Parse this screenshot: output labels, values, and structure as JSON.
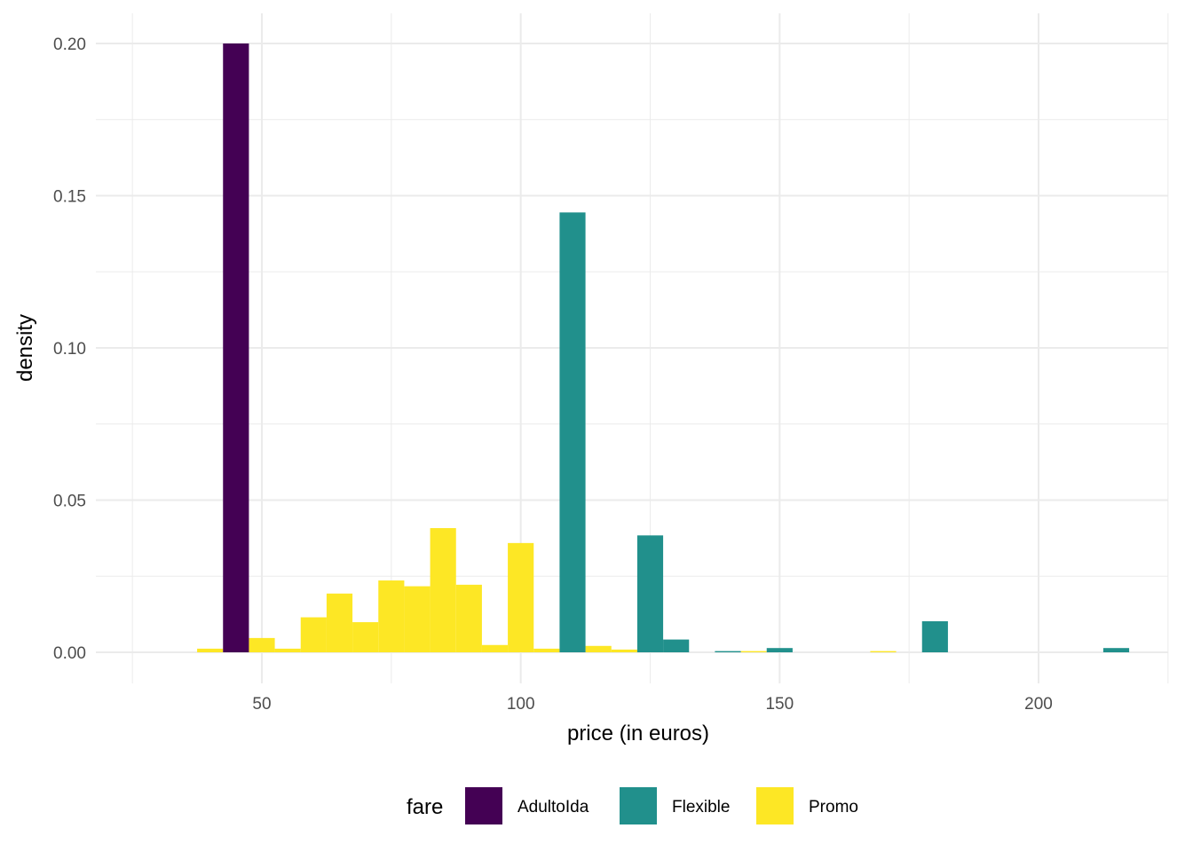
{
  "chart_data": {
    "type": "bar",
    "subtype": "histogram",
    "title": "",
    "xlabel": "price (in euros)",
    "ylabel": "density",
    "xlim": [
      25,
      225
    ],
    "ylim": [
      0,
      0.2
    ],
    "x_ticks": [
      50,
      100,
      150,
      200
    ],
    "x_tick_labels": [
      "50",
      "100",
      "150",
      "200"
    ],
    "y_ticks": [
      0,
      0.05,
      0.1,
      0.15,
      0.2
    ],
    "y_tick_labels": [
      "0.00",
      "0.05",
      "0.10",
      "0.15",
      "0.20"
    ],
    "bin_width": 5,
    "grid": true,
    "legend": {
      "title": "fare",
      "position": "bottom"
    },
    "series": [
      {
        "name": "AdultoIda",
        "color": "#440154",
        "bins": [
          {
            "x0": 42.5,
            "x1": 47.5,
            "density": 0.2
          }
        ]
      },
      {
        "name": "Flexible",
        "color": "#21908C",
        "bins": [
          {
            "x0": 107.5,
            "x1": 112.5,
            "density": 0.1445
          },
          {
            "x0": 122.5,
            "x1": 127.5,
            "density": 0.0384
          },
          {
            "x0": 127.5,
            "x1": 132.5,
            "density": 0.0042
          },
          {
            "x0": 137.5,
            "x1": 142.5,
            "density": 0.0004
          },
          {
            "x0": 147.5,
            "x1": 152.5,
            "density": 0.0014
          },
          {
            "x0": 177.5,
            "x1": 182.5,
            "density": 0.0102
          },
          {
            "x0": 212.5,
            "x1": 217.5,
            "density": 0.0014
          }
        ]
      },
      {
        "name": "Promo",
        "color": "#FDE725",
        "bins": [
          {
            "x0": 37.5,
            "x1": 42.5,
            "density": 0.0012
          },
          {
            "x0": 47.5,
            "x1": 52.5,
            "density": 0.0047
          },
          {
            "x0": 52.5,
            "x1": 57.5,
            "density": 0.0012
          },
          {
            "x0": 57.5,
            "x1": 62.5,
            "density": 0.0115
          },
          {
            "x0": 62.5,
            "x1": 67.5,
            "density": 0.0193
          },
          {
            "x0": 67.5,
            "x1": 72.5,
            "density": 0.0099
          },
          {
            "x0": 72.5,
            "x1": 77.5,
            "density": 0.0236
          },
          {
            "x0": 77.5,
            "x1": 82.5,
            "density": 0.0217
          },
          {
            "x0": 82.5,
            "x1": 87.5,
            "density": 0.0408
          },
          {
            "x0": 87.5,
            "x1": 92.5,
            "density": 0.0222
          },
          {
            "x0": 92.5,
            "x1": 97.5,
            "density": 0.0024
          },
          {
            "x0": 97.5,
            "x1": 102.5,
            "density": 0.0359
          },
          {
            "x0": 102.5,
            "x1": 107.5,
            "density": 0.0012
          },
          {
            "x0": 112.5,
            "x1": 117.5,
            "density": 0.0021
          },
          {
            "x0": 117.5,
            "x1": 122.5,
            "density": 0.0009
          },
          {
            "x0": 122.5,
            "x1": 127.5,
            "density": 0.0006
          },
          {
            "x0": 142.5,
            "x1": 147.5,
            "density": 0.0004
          },
          {
            "x0": 167.5,
            "x1": 172.5,
            "density": 0.0004
          }
        ]
      }
    ]
  }
}
